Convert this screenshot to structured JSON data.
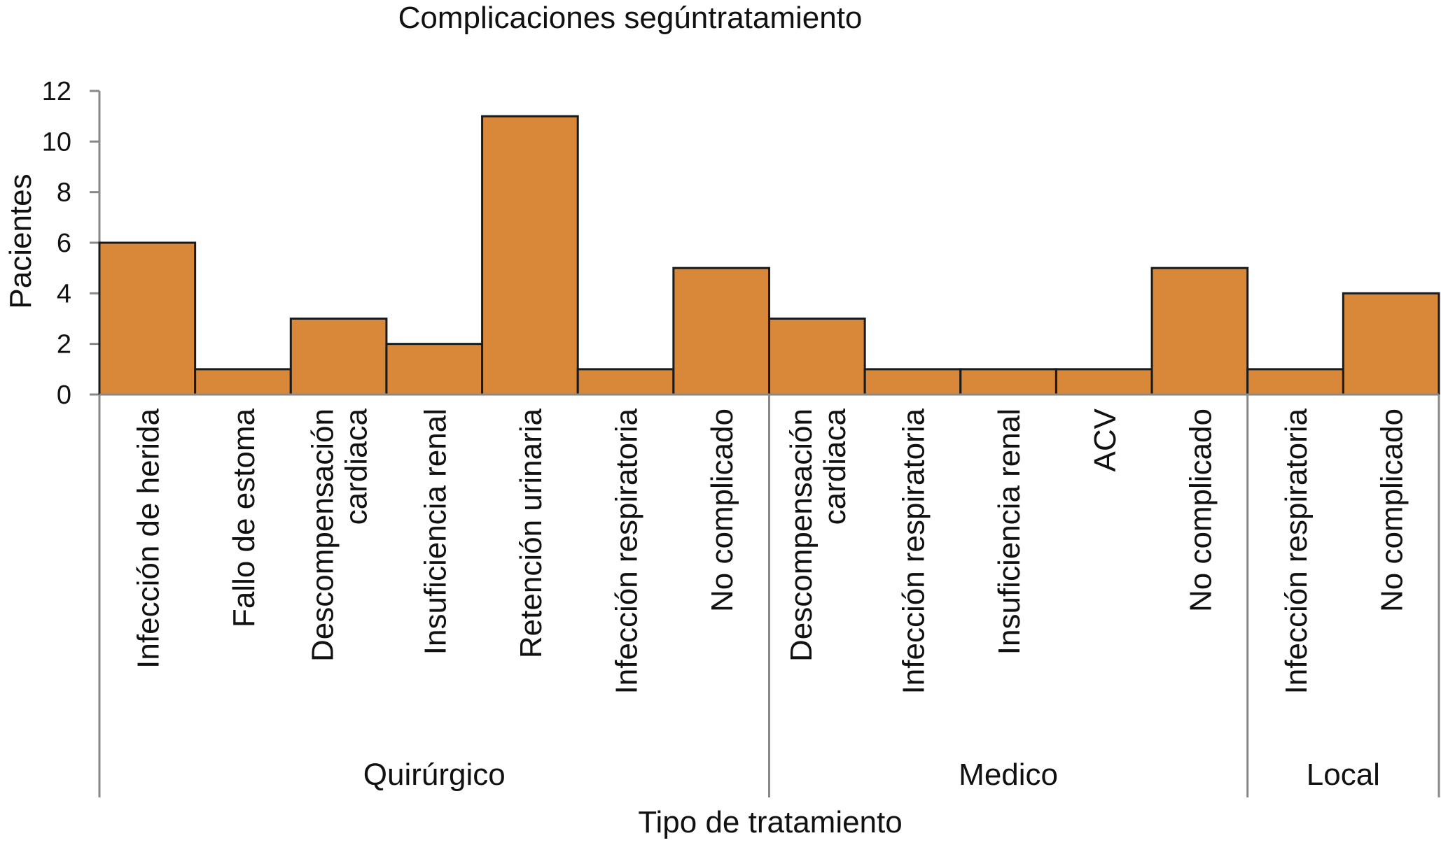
{
  "chart_data": {
    "type": "bar",
    "title": "Complicaciones segúntratamiento",
    "xlabel": "Tipo de tratamiento",
    "ylabel": "Pacientes",
    "ylim": [
      0,
      12
    ],
    "yticks": [
      0,
      2,
      4,
      6,
      8,
      10,
      12
    ],
    "bar_color": "#D9883A",
    "bar_edge_color": "#1a1a1a",
    "axis_color": "#888888",
    "categories": [
      [
        "Infección de herida"
      ],
      [
        "Fallo de estoma"
      ],
      [
        "Descompensación",
        "cardiaca"
      ],
      [
        "Insuficiencia renal"
      ],
      [
        "Retención urinaria"
      ],
      [
        "Infección respiratoria"
      ],
      [
        "No complicado"
      ],
      [
        "Descompensación",
        "cardiaca"
      ],
      [
        "Infección respiratoria"
      ],
      [
        "Insuficiencia renal"
      ],
      [
        "ACV"
      ],
      [
        "No complicado"
      ],
      [
        "Infección respiratoria"
      ],
      [
        "No complicado"
      ]
    ],
    "values": [
      6,
      1,
      3,
      2,
      11,
      1,
      5,
      3,
      1,
      1,
      1,
      5,
      1,
      4
    ],
    "groups": [
      {
        "label": "Quirúrgico",
        "count": 7
      },
      {
        "label": "Medico",
        "count": 5
      },
      {
        "label": "Local",
        "count": 2
      }
    ]
  }
}
